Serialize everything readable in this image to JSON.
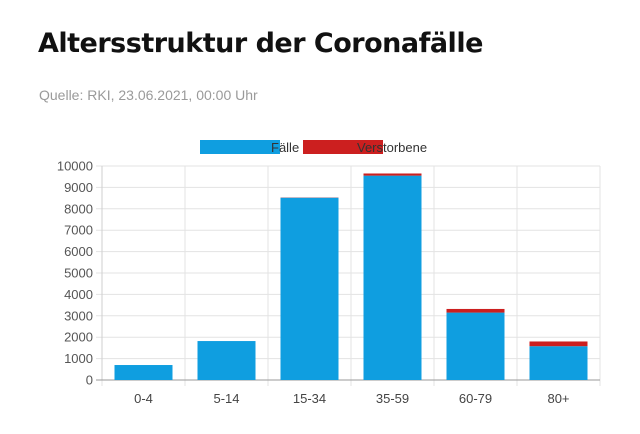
{
  "header": {
    "title": "Altersstruktur der Coronafälle",
    "source": "Quelle: RKI, 23.06.2021, 00:00 Uhr"
  },
  "chart_data": {
    "type": "bar",
    "stacked": true,
    "categories": [
      "0-4",
      "5-14",
      "15-34",
      "35-59",
      "60-79",
      "80+"
    ],
    "series": [
      {
        "name": "Fälle",
        "color": "#0f9ee0",
        "values": [
          700,
          1820,
          8520,
          9550,
          3150,
          1580
        ]
      },
      {
        "name": "Verstorbene",
        "color": "#cc1f1f",
        "values": [
          0,
          0,
          10,
          100,
          170,
          220
        ]
      }
    ],
    "ylim": [
      0,
      10000
    ],
    "yticks": [
      0,
      1000,
      2000,
      3000,
      4000,
      5000,
      6000,
      7000,
      8000,
      9000,
      10000
    ],
    "grid": true,
    "legend_position": "top-center"
  }
}
